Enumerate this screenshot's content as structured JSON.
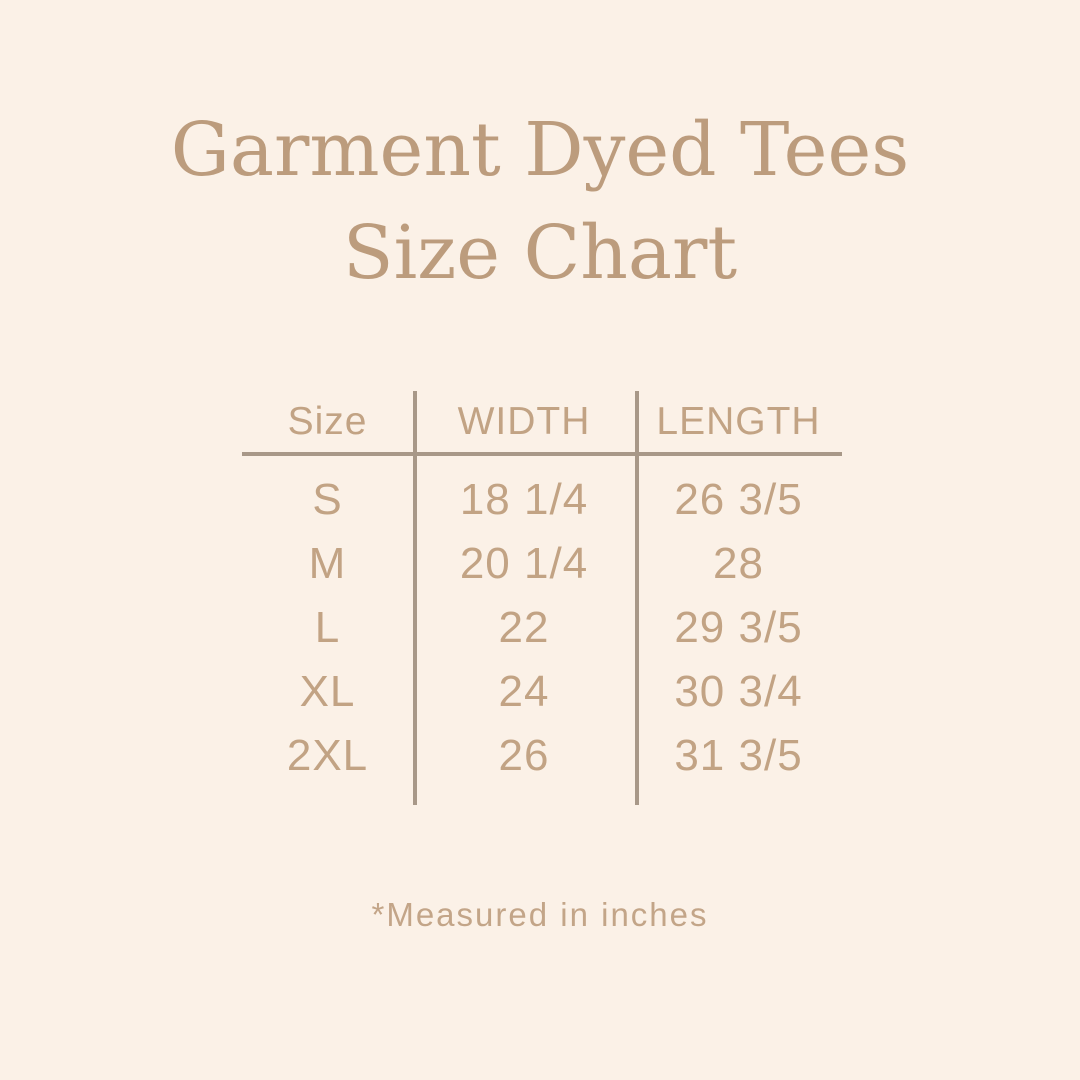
{
  "page": {
    "background_color": "#fbf1e7",
    "title_color": "#bc9c7d",
    "text_color": "#c2a384",
    "line_color": "#a89888"
  },
  "title": {
    "line1": "Garment Dyed Tees",
    "line2": "Size Chart"
  },
  "table": {
    "headers": {
      "size": "Size",
      "width": "WIDTH",
      "length": "LENGTH"
    },
    "rows": [
      {
        "size": "S",
        "width": "18 1/4",
        "length": "26 3/5"
      },
      {
        "size": "M",
        "width": "20 1/4",
        "length": "28"
      },
      {
        "size": "L",
        "width": "22",
        "length": "29 3/5"
      },
      {
        "size": "XL",
        "width": "24",
        "length": "30 3/4"
      },
      {
        "size": "2XL",
        "width": "26",
        "length": "31 3/5"
      }
    ]
  },
  "footnote": {
    "text": "*Measured in inches"
  },
  "chart_data": {
    "type": "table",
    "title": "Garment Dyed Tees Size Chart",
    "columns": [
      "Size",
      "WIDTH",
      "LENGTH"
    ],
    "rows": [
      [
        "S",
        "18 1/4",
        "26 3/5"
      ],
      [
        "M",
        "20 1/4",
        "28"
      ],
      [
        "L",
        "22",
        "29 3/5"
      ],
      [
        "XL",
        "24",
        "30 3/4"
      ],
      [
        "2XL",
        "26",
        "31 3/5"
      ]
    ],
    "units_note": "*Measured in inches"
  }
}
